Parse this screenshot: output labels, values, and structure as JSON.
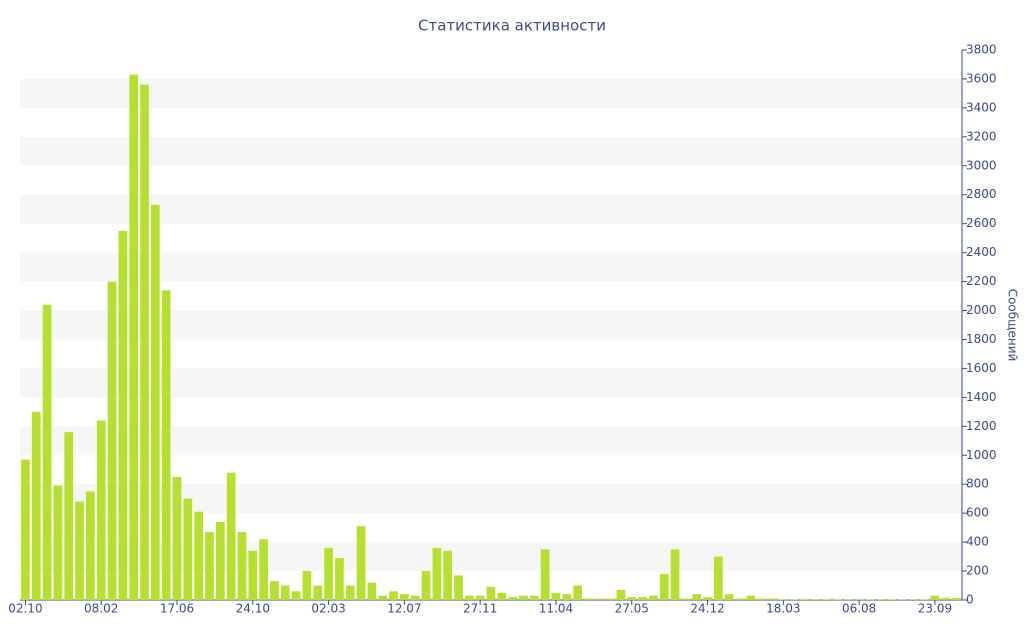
{
  "chart_data": {
    "type": "bar",
    "title": "Статистика активности",
    "ylabel": "Сообщений",
    "categories": [
      "02.10",
      null,
      null,
      null,
      null,
      null,
      null,
      "08.02",
      null,
      null,
      null,
      null,
      null,
      null,
      "17.06",
      null,
      null,
      null,
      null,
      null,
      null,
      "24.10",
      null,
      null,
      null,
      null,
      null,
      null,
      "02.03",
      null,
      null,
      null,
      null,
      null,
      null,
      "12.07",
      null,
      null,
      null,
      null,
      null,
      null,
      "27.11",
      null,
      null,
      null,
      null,
      null,
      null,
      "11.04",
      null,
      null,
      null,
      null,
      null,
      null,
      "27.05",
      null,
      null,
      null,
      null,
      null,
      null,
      "24.12",
      null,
      null,
      null,
      null,
      null,
      null,
      "18.03",
      null,
      null,
      null,
      null,
      null,
      null,
      "06.08",
      null,
      null,
      null,
      null,
      null,
      null,
      "23.09",
      null,
      null
    ],
    "values": [
      970,
      1300,
      2040,
      790,
      1160,
      680,
      750,
      1240,
      2200,
      2550,
      3630,
      3560,
      2730,
      2140,
      850,
      700,
      610,
      470,
      540,
      880,
      470,
      340,
      420,
      130,
      100,
      60,
      200,
      100,
      360,
      290,
      100,
      510,
      120,
      30,
      60,
      40,
      30,
      200,
      360,
      340,
      170,
      30,
      30,
      90,
      50,
      20,
      30,
      30,
      350,
      50,
      40,
      100,
      10,
      10,
      10,
      70,
      20,
      20,
      30,
      180,
      350,
      10,
      40,
      20,
      300,
      40,
      10,
      30,
      10,
      10,
      5,
      5,
      5,
      5,
      5,
      5,
      5,
      5,
      5,
      5,
      5,
      5,
      5,
      5,
      30,
      15,
      15
    ],
    "color": "#b5e02f",
    "ylim": [
      0,
      3800
    ],
    "yticks": [
      0,
      200,
      400,
      600,
      800,
      1000,
      1200,
      1400,
      1600,
      1800,
      2000,
      2200,
      2400,
      2600,
      2800,
      3000,
      3200,
      3400,
      3600,
      3800
    ],
    "grid": "bands"
  }
}
